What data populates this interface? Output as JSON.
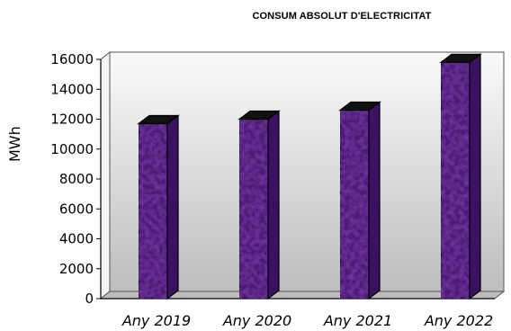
{
  "chart_data": {
    "type": "bar",
    "title": "CONSUM ABSOLUT D'ELECTRICITAT",
    "xlabel": "",
    "ylabel": "MWh",
    "categories": [
      "Any 2019",
      "Any 2020",
      "Any 2021",
      "Any 2022"
    ],
    "values": [
      11700,
      12000,
      12600,
      15800
    ],
    "ylim": [
      0,
      16000
    ],
    "yticks": [
      "0",
      "2000",
      "4000",
      "6000",
      "8000",
      "10000",
      "12000",
      "14000",
      "16000"
    ],
    "grid": false,
    "legend": "none",
    "bar_color": "#4b1a78",
    "bar_top_color": "#111111",
    "bar_side_color": "#3a1260",
    "wall_color": "#f4f4f4",
    "floor_color": "#bdbdbd"
  }
}
